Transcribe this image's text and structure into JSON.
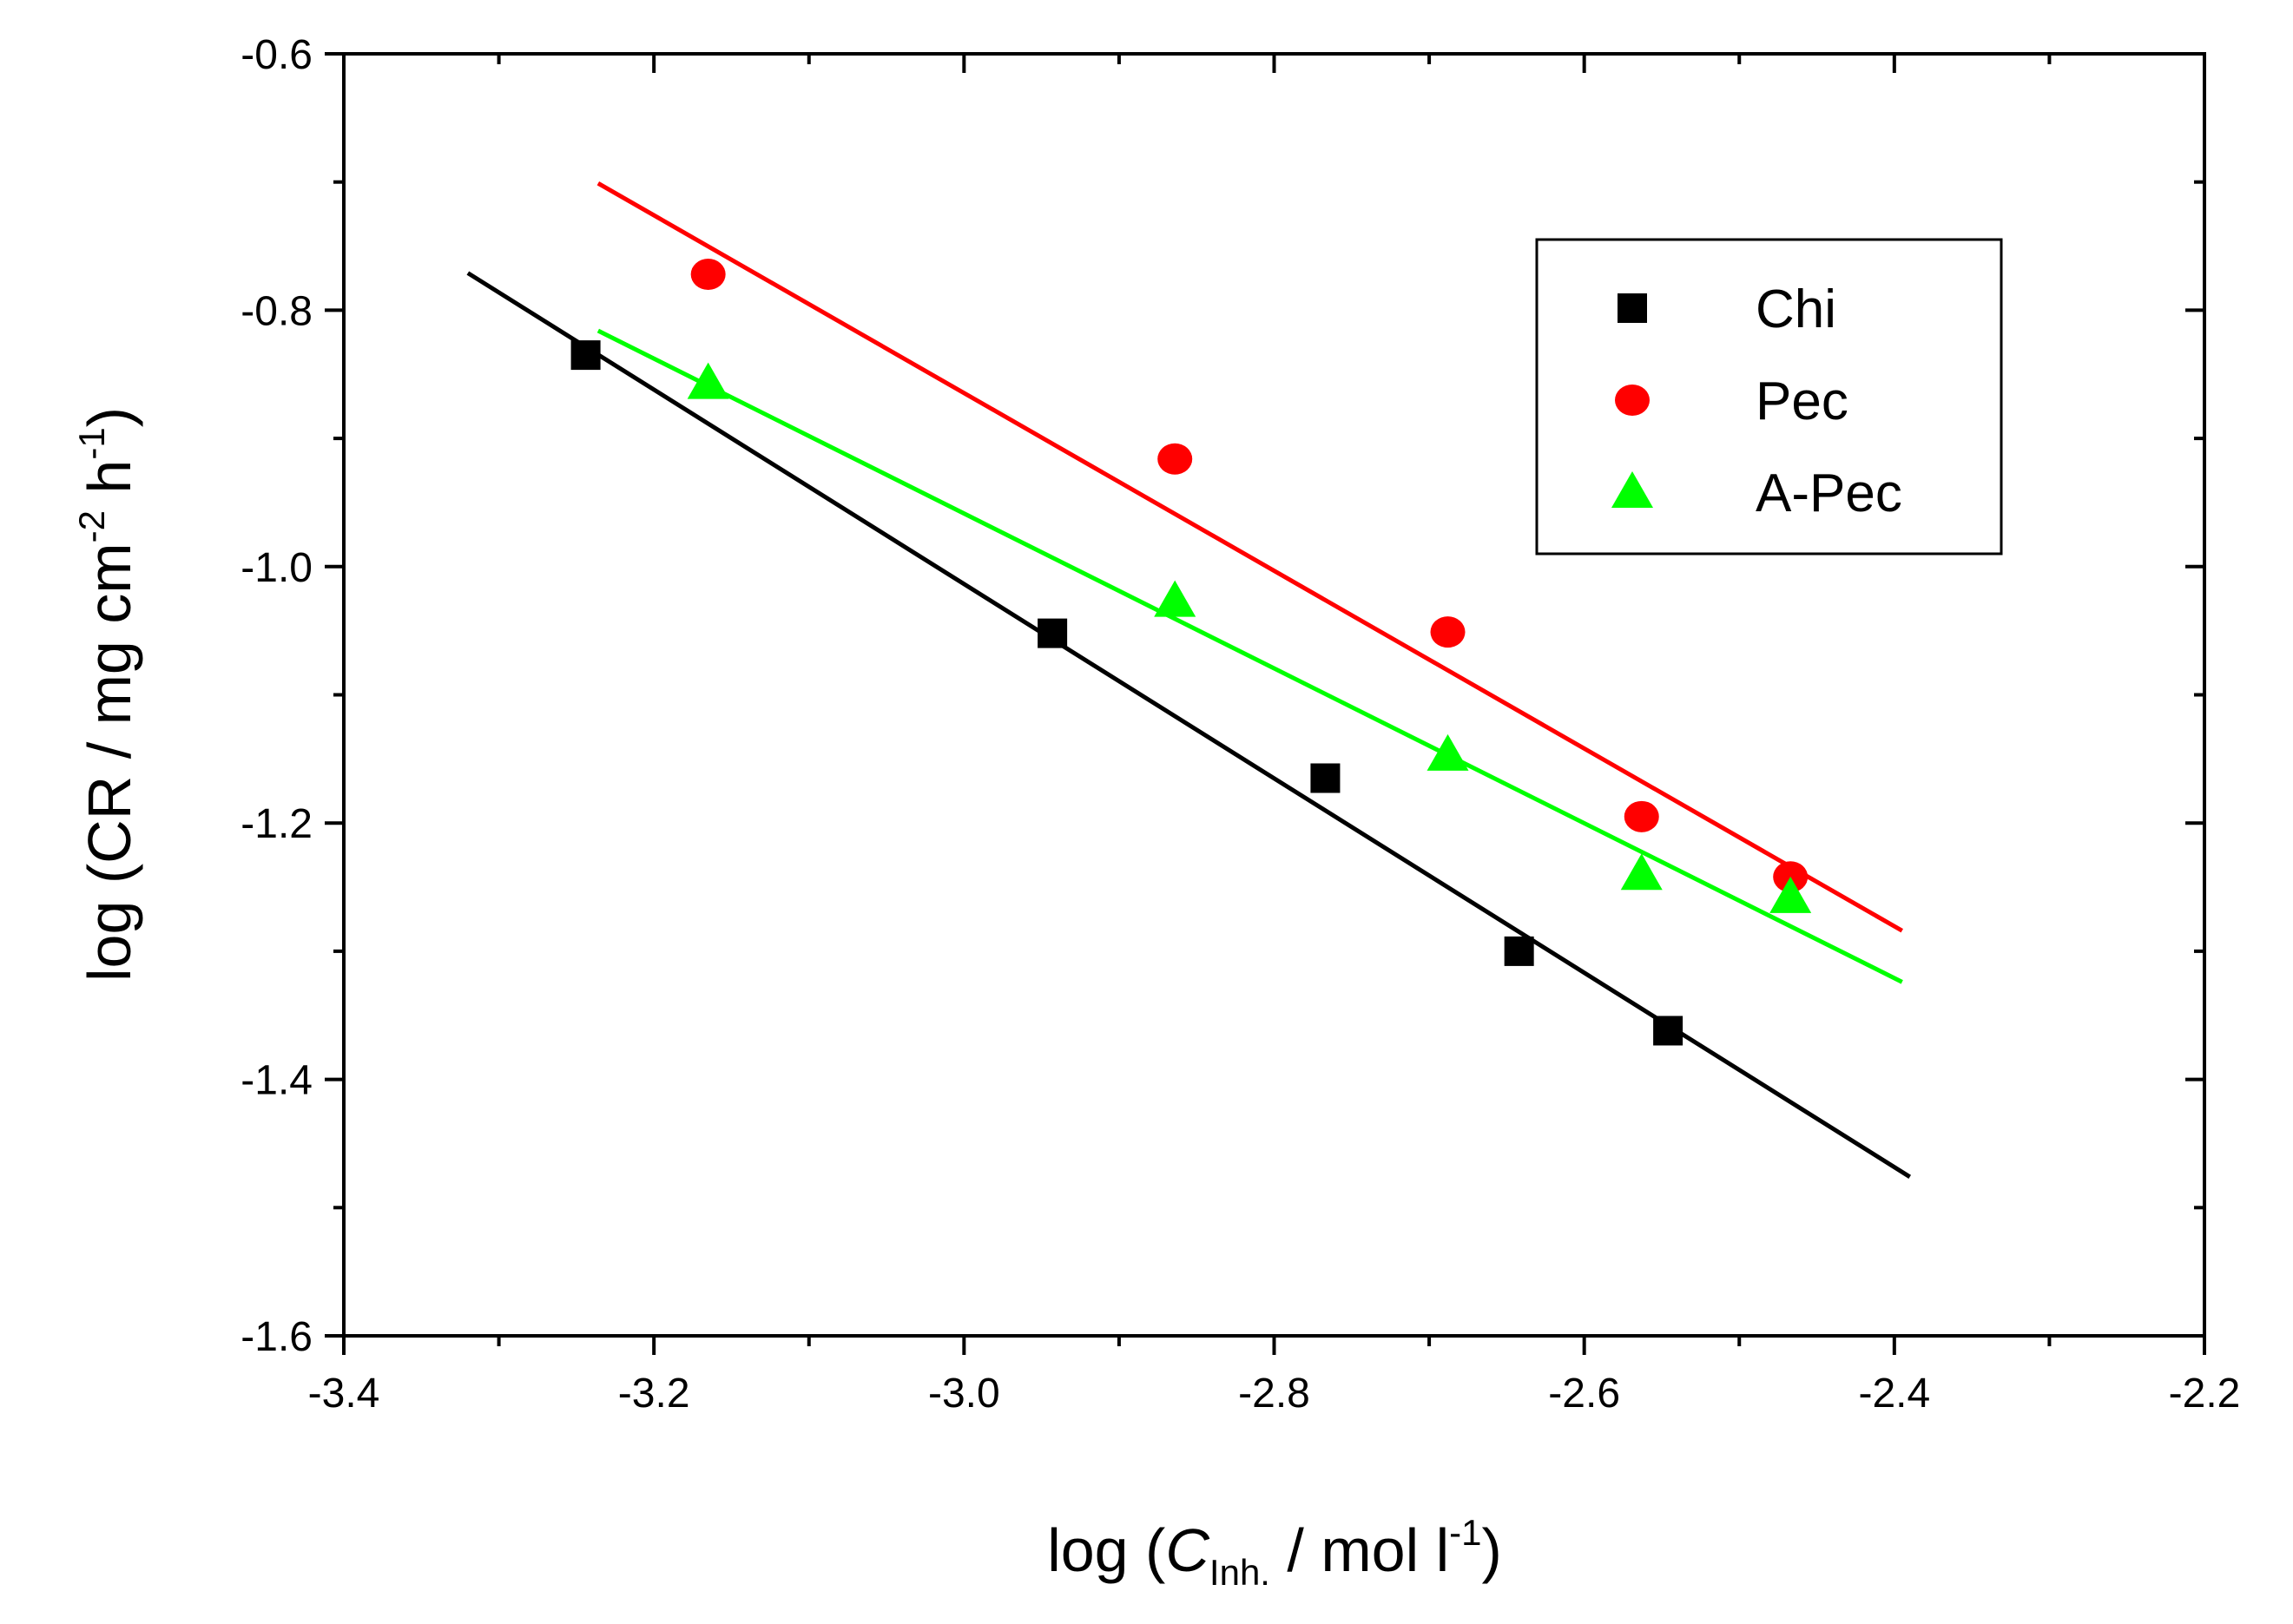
{
  "chart_data": {
    "type": "scatter",
    "xlabel": {
      "prefix": "log (",
      "symbol": "C",
      "subscript": "Inh.",
      "unit": " / mol l",
      "exponent": "-1",
      "suffix": ")"
    },
    "ylabel": {
      "prefix": "log (CR / mg cm",
      "exp1": "-2",
      "middle": " h",
      "exp2": "-1",
      "suffix": ")"
    },
    "xlim": [
      -3.4,
      -2.2
    ],
    "ylim": [
      -1.6,
      -0.6
    ],
    "xticks": [
      -3.4,
      -3.2,
      -3.0,
      -2.8,
      -2.6,
      -2.4,
      -2.2
    ],
    "xtick_labels": [
      "-3.4",
      "-3.2",
      "-3.0",
      "-2.8",
      "-2.6",
      "-2.4",
      "-2.2"
    ],
    "yticks": [
      -1.6,
      -1.4,
      -1.2,
      -1.0,
      -0.8,
      -0.6
    ],
    "ytick_labels": [
      "-1.6",
      "-1.4",
      "-1.2",
      "-1.0",
      "-0.8",
      "-0.6"
    ],
    "grid": false,
    "legend_position": "top-right",
    "series": [
      {
        "name": "Chi",
        "marker": "square",
        "color": "#000000",
        "x": [
          -3.244,
          -2.943,
          -2.767,
          -2.642,
          -2.546
        ],
        "y": [
          -0.835,
          -1.052,
          -1.165,
          -1.3,
          -1.362
        ],
        "fit": {
          "x": [
            -3.32,
            -2.39
          ],
          "y": [
            -0.771,
            -1.476
          ]
        }
      },
      {
        "name": "Pec",
        "marker": "circle",
        "color": "#ff0000",
        "x": [
          -3.165,
          -2.864,
          -2.688,
          -2.563,
          -2.467
        ],
        "y": [
          -0.772,
          -0.916,
          -1.051,
          -1.195,
          -1.242
        ],
        "fit": {
          "x": [
            -3.236,
            -2.395
          ],
          "y": [
            -0.701,
            -1.284
          ]
        }
      },
      {
        "name": "A-Pec",
        "marker": "triangle",
        "color": "#00ff00",
        "x": [
          -3.165,
          -2.864,
          -2.688,
          -2.563,
          -2.467
        ],
        "y": [
          -0.857,
          -1.027,
          -1.147,
          -1.24,
          -1.258
        ],
        "fit": {
          "x": [
            -3.236,
            -2.395
          ],
          "y": [
            -0.816,
            -1.324
          ]
        }
      }
    ]
  }
}
